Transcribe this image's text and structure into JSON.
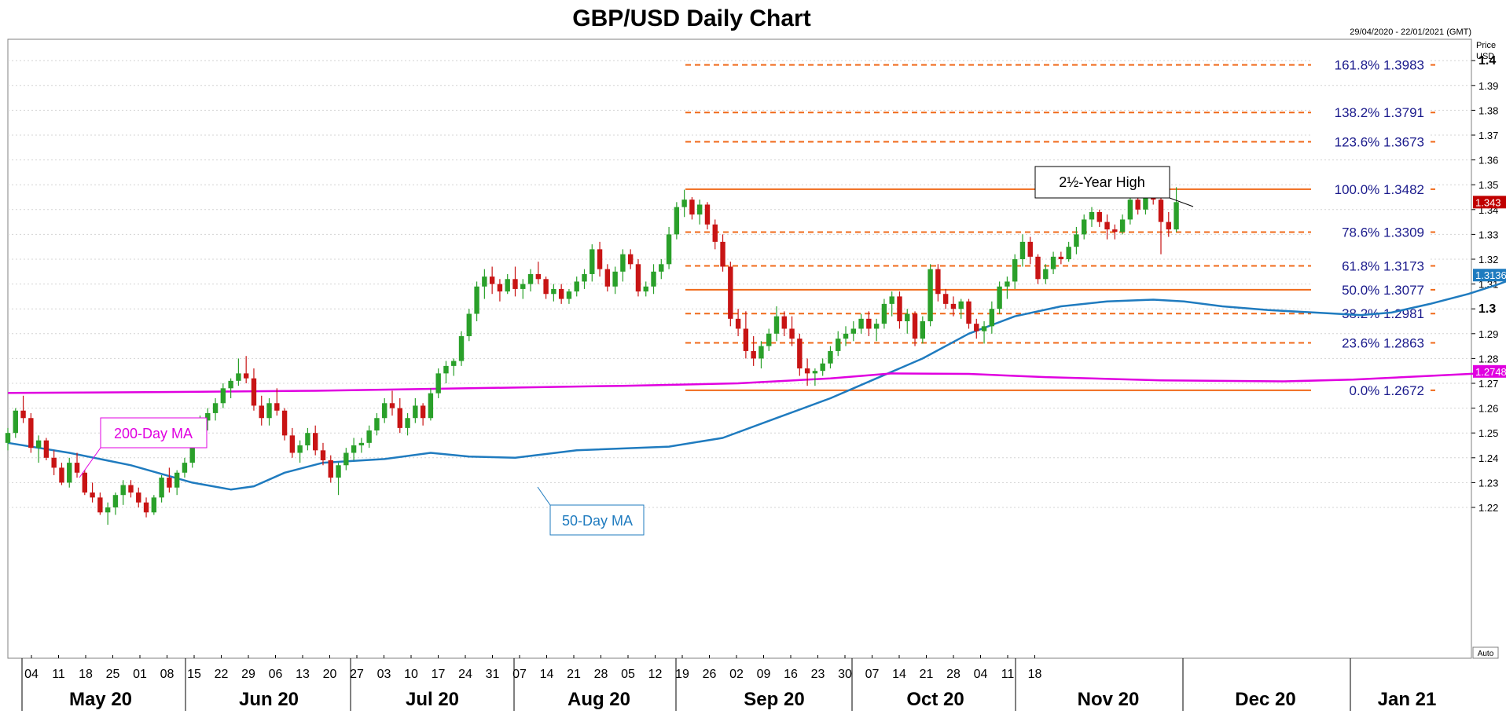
{
  "chart_data": {
    "type": "candlestick",
    "title": "GBP/USD Daily Chart",
    "date_range": "29/04/2020 - 22/01/2021 (GMT)",
    "price_label": "Price",
    "unit_label": "USD",
    "auto_label": "Auto",
    "ylim": [
      1.211,
      1.406
    ],
    "y_ticks": [
      1.22,
      1.23,
      1.24,
      1.25,
      1.26,
      1.27,
      1.28,
      1.29,
      1.3,
      1.31,
      1.32,
      1.33,
      1.34,
      1.35,
      1.36,
      1.37,
      1.38,
      1.39,
      1.4
    ],
    "y_tick_labels": [
      "1.22",
      "1.23",
      "1.24",
      "1.25",
      "1.26",
      "1.27",
      "1.28",
      "1.29",
      "1.3",
      "1.31",
      "1.32",
      "1.33",
      "1.34",
      "1.35",
      "1.36",
      "1.37",
      "1.38",
      "1.39",
      "1.4"
    ],
    "major_ticks": [
      "1.3",
      "1.4"
    ],
    "x_day_ticks": [
      "04",
      "11",
      "18",
      "25",
      "01",
      "08",
      "15",
      "22",
      "29",
      "06",
      "13",
      "20",
      "27",
      "03",
      "10",
      "17",
      "24",
      "31",
      "07",
      "14",
      "21",
      "28",
      "05",
      "12",
      "19",
      "26",
      "02",
      "09",
      "16",
      "23",
      "30",
      "07",
      "14",
      "21",
      "28",
      "04",
      "11",
      "18"
    ],
    "x_month_labels": [
      "May 20",
      "Jun 20",
      "Jul 20",
      "Aug 20",
      "Sep 20",
      "Oct 20",
      "Nov 20",
      "Dec 20",
      "Jan 21"
    ],
    "fib_levels": [
      {
        "label": "161.8% 1.3983",
        "value": 1.3983,
        "style": "dashed"
      },
      {
        "label": "138.2% 1.3791",
        "value": 1.3791,
        "style": "dashed"
      },
      {
        "label": "123.6% 1.3673",
        "value": 1.3673,
        "style": "dashed"
      },
      {
        "label": "100.0% 1.3482",
        "value": 1.3482,
        "style": "solid"
      },
      {
        "label": "78.6% 1.3309",
        "value": 1.3309,
        "style": "dashed"
      },
      {
        "label": "61.8% 1.3173",
        "value": 1.3173,
        "style": "dashed"
      },
      {
        "label": "50.0% 1.3077",
        "value": 1.3077,
        "style": "solid"
      },
      {
        "label": "38.2% 1.2981",
        "value": 1.2981,
        "style": "dashed"
      },
      {
        "label": "23.6% 1.2863",
        "value": 1.2863,
        "style": "dashed"
      },
      {
        "label": "0.0% 1.2672",
        "value": 1.2672,
        "style": "solid"
      }
    ],
    "annotations": {
      "high": "2½-Year High",
      "ma200": "200-Day MA",
      "ma50": "50-Day MA"
    },
    "price_tags": [
      {
        "label": "1.343",
        "value": 1.343,
        "color": "#c00000"
      },
      {
        "label": "1.3136",
        "value": 1.3136,
        "color": "#1f7bbf"
      },
      {
        "label": "1.2748",
        "value": 1.2748,
        "color": "#e000e0"
      }
    ],
    "series": [
      {
        "name": "50-Day MA",
        "color": "#1f7bbf",
        "points": [
          [
            1.246,
            0
          ],
          [
            1.242,
            8
          ],
          [
            1.237,
            16
          ],
          [
            1.23,
            24
          ],
          [
            1.2272,
            29
          ],
          [
            1.2285,
            32
          ],
          [
            1.234,
            36
          ],
          [
            1.238,
            41
          ],
          [
            1.2395,
            49
          ],
          [
            1.242,
            55
          ],
          [
            1.2405,
            60
          ],
          [
            1.24,
            66
          ],
          [
            1.243,
            74
          ],
          [
            1.2445,
            86
          ],
          [
            1.248,
            93
          ],
          [
            1.256,
            100
          ],
          [
            1.264,
            107
          ],
          [
            1.272,
            113
          ],
          [
            1.28,
            119
          ],
          [
            1.29,
            125
          ],
          [
            1.297,
            131
          ],
          [
            1.301,
            137
          ],
          [
            1.303,
            143
          ],
          [
            1.3037,
            149
          ],
          [
            1.303,
            153
          ],
          [
            1.301,
            158
          ],
          [
            1.2995,
            164
          ],
          [
            1.2985,
            170
          ],
          [
            1.2975,
            176
          ],
          [
            1.2985,
            180
          ],
          [
            1.302,
            185
          ],
          [
            1.306,
            190
          ],
          [
            1.31,
            194
          ],
          [
            1.3136,
            197
          ]
        ]
      },
      {
        "name": "200-Day MA",
        "color": "#e000e0",
        "points": [
          [
            1.2661,
            0
          ],
          [
            1.2665,
            20
          ],
          [
            1.267,
            40
          ],
          [
            1.268,
            60
          ],
          [
            1.269,
            80
          ],
          [
            1.27,
            95
          ],
          [
            1.272,
            107
          ],
          [
            1.274,
            115
          ],
          [
            1.2738,
            125
          ],
          [
            1.2725,
            135
          ],
          [
            1.2712,
            150
          ],
          [
            1.2708,
            166
          ],
          [
            1.2715,
            175
          ],
          [
            1.273,
            185
          ],
          [
            1.2748,
            197
          ]
        ]
      }
    ],
    "candles": [
      [
        1.246,
        1.252,
        1.243,
        1.25
      ],
      [
        1.25,
        1.26,
        1.248,
        1.259
      ],
      [
        1.259,
        1.265,
        1.254,
        1.256
      ],
      [
        1.256,
        1.258,
        1.242,
        1.244
      ],
      [
        1.244,
        1.249,
        1.238,
        1.247
      ],
      [
        1.247,
        1.248,
        1.239,
        1.24
      ],
      [
        1.24,
        1.243,
        1.233,
        1.236
      ],
      [
        1.236,
        1.238,
        1.229,
        1.23
      ],
      [
        1.23,
        1.24,
        1.228,
        1.238
      ],
      [
        1.238,
        1.242,
        1.232,
        1.234
      ],
      [
        1.234,
        1.235,
        1.225,
        1.226
      ],
      [
        1.226,
        1.23,
        1.222,
        1.224
      ],
      [
        1.224,
        1.226,
        1.217,
        1.218
      ],
      [
        1.218,
        1.222,
        1.213,
        1.22
      ],
      [
        1.22,
        1.226,
        1.217,
        1.225
      ],
      [
        1.225,
        1.231,
        1.221,
        1.229
      ],
      [
        1.229,
        1.231,
        1.224,
        1.226
      ],
      [
        1.226,
        1.228,
        1.22,
        1.222
      ],
      [
        1.222,
        1.224,
        1.216,
        1.218
      ],
      [
        1.218,
        1.225,
        1.217,
        1.224
      ],
      [
        1.224,
        1.233,
        1.222,
        1.232
      ],
      [
        1.232,
        1.236,
        1.226,
        1.228
      ],
      [
        1.228,
        1.235,
        1.225,
        1.234
      ],
      [
        1.234,
        1.24,
        1.232,
        1.238
      ],
      [
        1.238,
        1.252,
        1.236,
        1.25
      ],
      [
        1.25,
        1.257,
        1.247,
        1.255
      ],
      [
        1.255,
        1.26,
        1.251,
        1.258
      ],
      [
        1.258,
        1.264,
        1.255,
        1.262
      ],
      [
        1.262,
        1.27,
        1.26,
        1.268
      ],
      [
        1.268,
        1.272,
        1.264,
        1.271
      ],
      [
        1.271,
        1.28,
        1.269,
        1.274
      ],
      [
        1.274,
        1.281,
        1.27,
        1.272
      ],
      [
        1.272,
        1.276,
        1.259,
        1.261
      ],
      [
        1.261,
        1.265,
        1.253,
        1.256
      ],
      [
        1.256,
        1.264,
        1.253,
        1.262
      ],
      [
        1.262,
        1.268,
        1.257,
        1.259
      ],
      [
        1.259,
        1.26,
        1.247,
        1.249
      ],
      [
        1.249,
        1.252,
        1.24,
        1.242
      ],
      [
        1.242,
        1.247,
        1.238,
        1.245
      ],
      [
        1.245,
        1.252,
        1.243,
        1.25
      ],
      [
        1.25,
        1.253,
        1.241,
        1.243
      ],
      [
        1.243,
        1.246,
        1.237,
        1.239
      ],
      [
        1.239,
        1.241,
        1.23,
        1.232
      ],
      [
        1.232,
        1.238,
        1.225,
        1.237
      ],
      [
        1.237,
        1.244,
        1.235,
        1.242
      ],
      [
        1.242,
        1.248,
        1.239,
        1.245
      ],
      [
        1.245,
        1.248,
        1.242,
        1.246
      ],
      [
        1.246,
        1.253,
        1.244,
        1.251
      ],
      [
        1.251,
        1.258,
        1.249,
        1.256
      ],
      [
        1.256,
        1.264,
        1.254,
        1.262
      ],
      [
        1.262,
        1.267,
        1.257,
        1.26
      ],
      [
        1.26,
        1.264,
        1.25,
        1.252
      ],
      [
        1.252,
        1.258,
        1.249,
        1.256
      ],
      [
        1.256,
        1.264,
        1.254,
        1.261
      ],
      [
        1.261,
        1.262,
        1.253,
        1.256
      ],
      [
        1.256,
        1.268,
        1.255,
        1.266
      ],
      [
        1.266,
        1.276,
        1.264,
        1.274
      ],
      [
        1.274,
        1.279,
        1.27,
        1.277
      ],
      [
        1.277,
        1.28,
        1.273,
        1.279
      ],
      [
        1.279,
        1.291,
        1.277,
        1.289
      ],
      [
        1.289,
        1.3,
        1.287,
        1.298
      ],
      [
        1.298,
        1.311,
        1.295,
        1.309
      ],
      [
        1.309,
        1.316,
        1.304,
        1.313
      ],
      [
        1.313,
        1.317,
        1.306,
        1.31
      ],
      [
        1.31,
        1.312,
        1.303,
        1.307
      ],
      [
        1.307,
        1.314,
        1.306,
        1.312
      ],
      [
        1.312,
        1.317,
        1.305,
        1.308
      ],
      [
        1.308,
        1.312,
        1.304,
        1.31
      ],
      [
        1.31,
        1.316,
        1.307,
        1.314
      ],
      [
        1.314,
        1.319,
        1.31,
        1.312
      ],
      [
        1.312,
        1.313,
        1.304,
        1.306
      ],
      [
        1.306,
        1.31,
        1.303,
        1.308
      ],
      [
        1.308,
        1.31,
        1.302,
        1.304
      ],
      [
        1.304,
        1.308,
        1.302,
        1.307
      ],
      [
        1.307,
        1.313,
        1.305,
        1.311
      ],
      [
        1.311,
        1.316,
        1.308,
        1.314
      ],
      [
        1.314,
        1.326,
        1.311,
        1.324
      ],
      [
        1.324,
        1.327,
        1.313,
        1.316
      ],
      [
        1.316,
        1.318,
        1.307,
        1.309
      ],
      [
        1.309,
        1.317,
        1.306,
        1.315
      ],
      [
        1.315,
        1.324,
        1.311,
        1.322
      ],
      [
        1.322,
        1.324,
        1.316,
        1.318
      ],
      [
        1.318,
        1.32,
        1.305,
        1.307
      ],
      [
        1.307,
        1.311,
        1.305,
        1.309
      ],
      [
        1.309,
        1.318,
        1.306,
        1.315
      ],
      [
        1.315,
        1.32,
        1.312,
        1.318
      ],
      [
        1.318,
        1.333,
        1.316,
        1.33
      ],
      [
        1.33,
        1.343,
        1.328,
        1.341
      ],
      [
        1.341,
        1.348,
        1.337,
        1.344
      ],
      [
        1.344,
        1.345,
        1.336,
        1.338
      ],
      [
        1.338,
        1.344,
        1.334,
        1.342
      ],
      [
        1.342,
        1.343,
        1.332,
        1.334
      ],
      [
        1.334,
        1.336,
        1.324,
        1.327
      ],
      [
        1.327,
        1.33,
        1.315,
        1.317
      ],
      [
        1.317,
        1.319,
        1.293,
        1.296
      ],
      [
        1.296,
        1.3,
        1.289,
        1.292
      ],
      [
        1.292,
        1.299,
        1.28,
        1.283
      ],
      [
        1.283,
        1.289,
        1.277,
        1.28
      ],
      [
        1.28,
        1.287,
        1.276,
        1.285
      ],
      [
        1.285,
        1.292,
        1.283,
        1.29
      ],
      [
        1.29,
        1.301,
        1.287,
        1.297
      ],
      [
        1.297,
        1.299,
        1.289,
        1.292
      ],
      [
        1.292,
        1.297,
        1.285,
        1.288
      ],
      [
        1.288,
        1.29,
        1.273,
        1.276
      ],
      [
        1.276,
        1.28,
        1.269,
        1.274
      ],
      [
        1.274,
        1.276,
        1.269,
        1.275
      ],
      [
        1.275,
        1.28,
        1.273,
        1.278
      ],
      [
        1.278,
        1.285,
        1.276,
        1.283
      ],
      [
        1.283,
        1.291,
        1.281,
        1.288
      ],
      [
        1.288,
        1.293,
        1.285,
        1.29
      ],
      [
        1.29,
        1.295,
        1.287,
        1.292
      ],
      [
        1.292,
        1.298,
        1.29,
        1.296
      ],
      [
        1.296,
        1.299,
        1.289,
        1.292
      ],
      [
        1.292,
        1.296,
        1.287,
        1.294
      ],
      [
        1.294,
        1.304,
        1.292,
        1.302
      ],
      [
        1.302,
        1.307,
        1.297,
        1.305
      ],
      [
        1.305,
        1.307,
        1.292,
        1.295
      ],
      [
        1.295,
        1.3,
        1.29,
        1.298
      ],
      [
        1.298,
        1.299,
        1.285,
        1.288
      ],
      [
        1.288,
        1.297,
        1.286,
        1.295
      ],
      [
        1.295,
        1.318,
        1.293,
        1.316
      ],
      [
        1.316,
        1.318,
        1.303,
        1.306
      ],
      [
        1.306,
        1.308,
        1.3,
        1.302
      ],
      [
        1.302,
        1.305,
        1.297,
        1.3
      ],
      [
        1.3,
        1.304,
        1.296,
        1.303
      ],
      [
        1.303,
        1.304,
        1.292,
        1.294
      ],
      [
        1.294,
        1.296,
        1.288,
        1.291
      ],
      [
        1.291,
        1.295,
        1.286,
        1.293
      ],
      [
        1.293,
        1.303,
        1.29,
        1.3
      ],
      [
        1.3,
        1.311,
        1.298,
        1.309
      ],
      [
        1.309,
        1.313,
        1.304,
        1.311
      ],
      [
        1.311,
        1.322,
        1.308,
        1.32
      ],
      [
        1.32,
        1.33,
        1.317,
        1.327
      ],
      [
        1.327,
        1.329,
        1.318,
        1.321
      ],
      [
        1.321,
        1.322,
        1.31,
        1.312
      ],
      [
        1.312,
        1.318,
        1.31,
        1.316
      ],
      [
        1.316,
        1.323,
        1.314,
        1.321
      ],
      [
        1.321,
        1.323,
        1.318,
        1.32
      ],
      [
        1.32,
        1.327,
        1.319,
        1.325
      ],
      [
        1.325,
        1.333,
        1.322,
        1.33
      ],
      [
        1.33,
        1.338,
        1.328,
        1.336
      ],
      [
        1.336,
        1.341,
        1.333,
        1.339
      ],
      [
        1.339,
        1.34,
        1.333,
        1.335
      ],
      [
        1.335,
        1.338,
        1.328,
        1.332
      ],
      [
        1.332,
        1.334,
        1.328,
        1.331
      ],
      [
        1.331,
        1.338,
        1.33,
        1.336
      ],
      [
        1.336,
        1.346,
        1.334,
        1.344
      ],
      [
        1.344,
        1.348,
        1.338,
        1.34
      ],
      [
        1.34,
        1.35,
        1.338,
        1.345
      ],
      [
        1.345,
        1.354,
        1.342,
        1.344
      ],
      [
        1.344,
        1.347,
        1.322,
        1.335
      ],
      [
        1.335,
        1.339,
        1.329,
        1.332
      ],
      [
        1.332,
        1.349,
        1.331,
        1.343
      ]
    ]
  }
}
